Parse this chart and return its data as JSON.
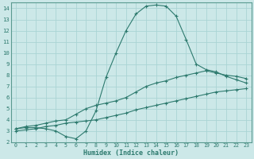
{
  "xlabel": "Humidex (Indice chaleur)",
  "xlim": [
    -0.5,
    23.5
  ],
  "ylim": [
    2,
    14.5
  ],
  "yticks": [
    2,
    3,
    4,
    5,
    6,
    7,
    8,
    9,
    10,
    11,
    12,
    13,
    14
  ],
  "xticks": [
    0,
    1,
    2,
    3,
    4,
    5,
    6,
    7,
    8,
    9,
    10,
    11,
    12,
    13,
    14,
    15,
    16,
    17,
    18,
    19,
    20,
    21,
    22,
    23
  ],
  "bg_color": "#cce8e8",
  "grid_color": "#aad4d4",
  "line_color": "#2d7a6e",
  "line1_x": [
    0,
    1,
    2,
    3,
    4,
    5,
    6,
    7,
    8,
    9,
    10,
    11,
    12,
    13,
    14,
    15,
    16,
    17,
    18,
    19,
    20,
    21,
    22,
    23
  ],
  "line1_y": [
    3.2,
    3.3,
    3.3,
    3.2,
    3.0,
    2.5,
    2.3,
    3.0,
    4.8,
    7.8,
    10.0,
    12.0,
    13.5,
    14.2,
    14.3,
    14.2,
    13.3,
    11.2,
    9.0,
    8.5,
    8.3,
    7.9,
    7.6,
    7.3
  ],
  "line2_x": [
    0,
    1,
    2,
    3,
    4,
    5,
    6,
    7,
    8,
    9,
    10,
    11,
    12,
    13,
    14,
    15,
    16,
    17,
    18,
    19,
    20,
    21,
    22,
    23
  ],
  "line2_y": [
    3.2,
    3.4,
    3.5,
    3.7,
    3.9,
    4.0,
    4.5,
    5.0,
    5.3,
    5.5,
    5.7,
    6.0,
    6.5,
    7.0,
    7.3,
    7.5,
    7.8,
    8.0,
    8.2,
    8.4,
    8.2,
    8.0,
    7.9,
    7.7
  ],
  "line3_x": [
    0,
    1,
    2,
    3,
    4,
    5,
    6,
    7,
    8,
    9,
    10,
    11,
    12,
    13,
    14,
    15,
    16,
    17,
    18,
    19,
    20,
    21,
    22,
    23
  ],
  "line3_y": [
    3.0,
    3.1,
    3.2,
    3.4,
    3.5,
    3.7,
    3.8,
    3.9,
    4.0,
    4.2,
    4.4,
    4.6,
    4.9,
    5.1,
    5.3,
    5.5,
    5.7,
    5.9,
    6.1,
    6.3,
    6.5,
    6.6,
    6.7,
    6.8
  ]
}
